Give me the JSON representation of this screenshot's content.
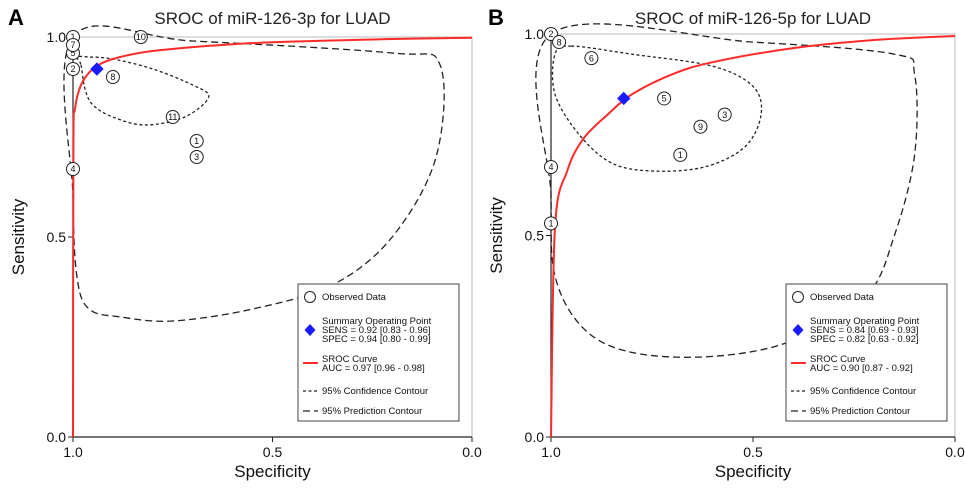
{
  "chart_data": [
    {
      "type": "scatter",
      "panel_label": "A",
      "title": "SROC of miR-126-3p for LUAD",
      "xlabel": "Specificity",
      "ylabel": "Sensitivity",
      "xlim": [
        1.0,
        0.0
      ],
      "ylim": [
        0.0,
        1.0
      ],
      "x_ticks": [
        "1.0",
        "0.5",
        "0.0"
      ],
      "y_ticks": [
        "0.0",
        "0.5",
        "1.0"
      ],
      "observed": [
        {
          "label": "1",
          "specificity": 1.0,
          "sensitivity": 1.0
        },
        {
          "label": "2",
          "specificity": 1.0,
          "sensitivity": 0.92
        },
        {
          "label": "4",
          "specificity": 1.0,
          "sensitivity": 0.67
        },
        {
          "label": "5",
          "specificity": 1.0,
          "sensitivity": 0.96
        },
        {
          "label": "7",
          "specificity": 1.0,
          "sensitivity": 0.98
        },
        {
          "label": "8",
          "specificity": 0.9,
          "sensitivity": 0.9
        },
        {
          "label": "10",
          "specificity": 0.83,
          "sensitivity": 1.0
        },
        {
          "label": "11",
          "specificity": 0.75,
          "sensitivity": 0.8
        },
        {
          "label": "1",
          "specificity": 0.69,
          "sensitivity": 0.74
        },
        {
          "label": "3",
          "specificity": 0.69,
          "sensitivity": 0.7
        }
      ],
      "summary_point": {
        "specificity": 0.94,
        "sensitivity": 0.92
      },
      "sroc_curve": [
        [
          1.0,
          0.0
        ],
        [
          0.999,
          0.72
        ],
        [
          0.995,
          0.82
        ],
        [
          0.98,
          0.88
        ],
        [
          0.95,
          0.92
        ],
        [
          0.9,
          0.945
        ],
        [
          0.8,
          0.965
        ],
        [
          0.6,
          0.982
        ],
        [
          0.4,
          0.99
        ],
        [
          0.2,
          0.995
        ],
        [
          0.0,
          0.998
        ]
      ],
      "confidence_contour": [
        [
          0.98,
          0.93
        ],
        [
          0.97,
          0.87
        ],
        [
          0.95,
          0.83
        ],
        [
          0.9,
          0.8
        ],
        [
          0.82,
          0.78
        ],
        [
          0.72,
          0.8
        ],
        [
          0.66,
          0.85
        ],
        [
          0.7,
          0.88
        ],
        [
          0.8,
          0.92
        ],
        [
          0.9,
          0.945
        ],
        [
          0.96,
          0.95
        ],
        [
          0.99,
          0.95
        ],
        [
          0.98,
          0.93
        ]
      ],
      "prediction_contour": [
        [
          1.0,
          1.0
        ],
        [
          0.7,
          0.99
        ],
        [
          0.2,
          0.96
        ],
        [
          0.08,
          0.93
        ],
        [
          0.09,
          0.7
        ],
        [
          0.2,
          0.5
        ],
        [
          0.35,
          0.38
        ],
        [
          0.55,
          0.32
        ],
        [
          0.75,
          0.29
        ],
        [
          0.88,
          0.3
        ],
        [
          0.96,
          0.32
        ],
        [
          0.99,
          0.4
        ],
        [
          1.0,
          0.6
        ],
        [
          1.0,
          1.0
        ]
      ],
      "legend": {
        "observed": "Observed Data",
        "summary_title": "Summary Operating Point",
        "summary_sens": "SENS = 0.92 [0.83 - 0.96]",
        "summary_spec": "SPEC = 0.94 [0.80 - 0.99]",
        "sroc_title": "SROC Curve",
        "sroc_auc": "AUC = 0.97 [0.96 - 0.98]",
        "confidence": "95% Confidence Contour",
        "prediction": "95% Prediction Contour"
      }
    },
    {
      "type": "scatter",
      "panel_label": "B",
      "title": "SROC of miR-126-5p for LUAD",
      "xlabel": "Specificity",
      "ylabel": "Sensitivity",
      "xlim": [
        1.0,
        0.0
      ],
      "ylim": [
        0.0,
        1.0
      ],
      "x_ticks": [
        "1.0",
        "0.5",
        "0.0"
      ],
      "y_ticks": [
        "0.0",
        "0.5",
        "1.0"
      ],
      "observed": [
        {
          "label": "2",
          "specificity": 1.0,
          "sensitivity": 1.0
        },
        {
          "label": "8",
          "specificity": 0.98,
          "sensitivity": 0.98
        },
        {
          "label": "6",
          "specificity": 0.9,
          "sensitivity": 0.94
        },
        {
          "label": "5",
          "specificity": 0.72,
          "sensitivity": 0.84
        },
        {
          "label": "3",
          "specificity": 0.57,
          "sensitivity": 0.8
        },
        {
          "label": "9",
          "specificity": 0.63,
          "sensitivity": 0.77
        },
        {
          "label": "1",
          "specificity": 0.68,
          "sensitivity": 0.7
        },
        {
          "label": "4",
          "specificity": 1.0,
          "sensitivity": 0.67
        },
        {
          "label": "1",
          "specificity": 1.0,
          "sensitivity": 0.53
        }
      ],
      "summary_point": {
        "specificity": 0.82,
        "sensitivity": 0.84
      },
      "sroc_curve": [
        [
          1.0,
          0.0
        ],
        [
          0.99,
          0.52
        ],
        [
          0.96,
          0.66
        ],
        [
          0.92,
          0.74
        ],
        [
          0.86,
          0.8
        ],
        [
          0.8,
          0.85
        ],
        [
          0.7,
          0.9
        ],
        [
          0.6,
          0.93
        ],
        [
          0.4,
          0.965
        ],
        [
          0.2,
          0.985
        ],
        [
          0.0,
          0.995
        ]
      ],
      "confidence_contour": [
        [
          0.95,
          0.97
        ],
        [
          0.8,
          0.95
        ],
        [
          0.6,
          0.92
        ],
        [
          0.5,
          0.87
        ],
        [
          0.48,
          0.8
        ],
        [
          0.52,
          0.72
        ],
        [
          0.62,
          0.67
        ],
        [
          0.75,
          0.66
        ],
        [
          0.85,
          0.68
        ],
        [
          0.93,
          0.75
        ],
        [
          0.99,
          0.85
        ],
        [
          0.99,
          0.95
        ],
        [
          0.95,
          0.97
        ]
      ],
      "prediction_contour": [
        [
          1.0,
          1.0
        ],
        [
          0.5,
          0.98
        ],
        [
          0.15,
          0.95
        ],
        [
          0.1,
          0.9
        ],
        [
          0.1,
          0.7
        ],
        [
          0.15,
          0.5
        ],
        [
          0.22,
          0.35
        ],
        [
          0.4,
          0.24
        ],
        [
          0.6,
          0.2
        ],
        [
          0.8,
          0.21
        ],
        [
          0.92,
          0.27
        ],
        [
          0.99,
          0.4
        ],
        [
          1.0,
          0.6
        ],
        [
          1.0,
          1.0
        ]
      ],
      "legend": {
        "observed": "Observed Data",
        "summary_title": "Summary Operating Point",
        "summary_sens": "SENS = 0.84 [0.69 - 0.93]",
        "summary_spec": "SPEC = 0.82 [0.63 - 0.92]",
        "sroc_title": "SROC Curve",
        "sroc_auc": "AUC = 0.90 [0.87 - 0.92]",
        "confidence": "95% Confidence Contour",
        "prediction": "95% Prediction Contour"
      }
    }
  ],
  "colors": {
    "sroc_curve": "#ff2a2a",
    "summary_point": "#1a1aff",
    "contour": "#222222",
    "frame": "#555555"
  }
}
